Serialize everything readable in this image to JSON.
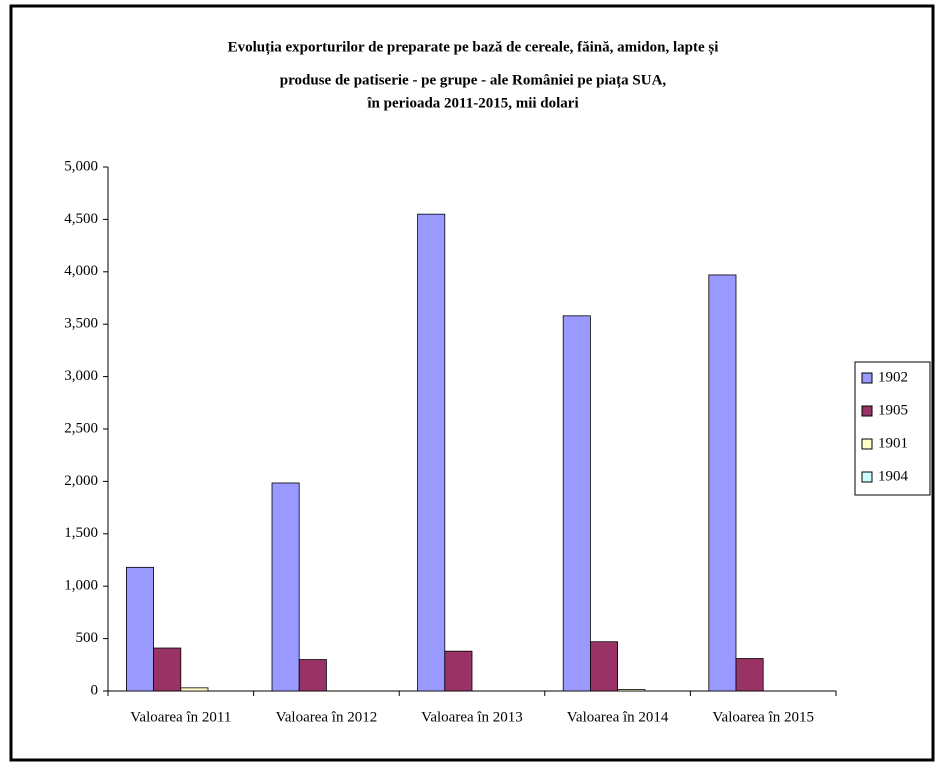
{
  "chart_data": {
    "type": "bar",
    "title": [
      "Evoluția exporturilor de preparate pe bază de cereale, făină, amidon, lapte și",
      "produse de patiserie - pe grupe - ale României pe piața SUA,",
      "în perioada 2011-2015, mii dolari"
    ],
    "categories": [
      "Valoarea în 2011",
      "Valoarea în 2012",
      "Valoarea în 2013",
      "Valoarea în 2014",
      "Valoarea în 2015"
    ],
    "series": [
      {
        "name": "1902",
        "color": "#9999ff",
        "values": [
          1180,
          1985,
          4550,
          3580,
          3970
        ]
      },
      {
        "name": "1905",
        "color": "#993366",
        "values": [
          410,
          300,
          380,
          470,
          310
        ]
      },
      {
        "name": "1901",
        "color": "#ffffcc",
        "values": [
          30,
          0,
          0,
          15,
          0
        ]
      },
      {
        "name": "1904",
        "color": "#ccffff",
        "values": [
          0,
          0,
          0,
          0,
          0
        ]
      }
    ],
    "ylim": [
      0,
      5000
    ],
    "yticks": [
      0,
      500,
      {
        "value": 1000,
        "label": "1,000"
      },
      {
        "value": 1500,
        "label": "1,500"
      },
      {
        "value": 2000,
        "label": "2,000"
      },
      {
        "value": 2500,
        "label": "2,500"
      },
      {
        "value": 3000,
        "label": "3,000"
      },
      {
        "value": 3500,
        "label": "3,500"
      },
      {
        "value": 4000,
        "label": "4,000"
      },
      {
        "value": 4500,
        "label": "4,500"
      },
      {
        "value": 5000,
        "label": "5,000"
      }
    ],
    "grid": false,
    "legend": "right"
  }
}
